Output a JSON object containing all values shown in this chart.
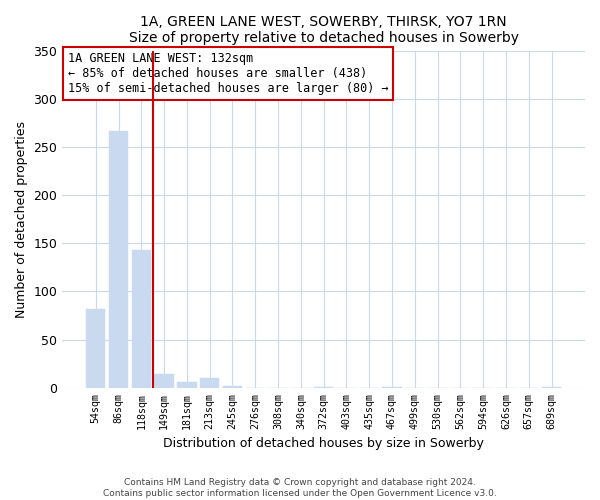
{
  "title": "1A, GREEN LANE WEST, SOWERBY, THIRSK, YO7 1RN",
  "subtitle": "Size of property relative to detached houses in Sowerby",
  "xlabel": "Distribution of detached houses by size in Sowerby",
  "ylabel": "Number of detached properties",
  "bar_labels": [
    "54sqm",
    "86sqm",
    "118sqm",
    "149sqm",
    "181sqm",
    "213sqm",
    "245sqm",
    "276sqm",
    "308sqm",
    "340sqm",
    "372sqm",
    "403sqm",
    "435sqm",
    "467sqm",
    "499sqm",
    "530sqm",
    "562sqm",
    "594sqm",
    "626sqm",
    "657sqm",
    "689sqm"
  ],
  "bar_values": [
    82,
    266,
    143,
    14,
    6,
    10,
    2,
    0,
    0,
    0,
    1,
    0,
    0,
    1,
    0,
    0,
    0,
    0,
    0,
    0,
    1
  ],
  "bar_color": "#c8d9f0",
  "bar_edge_color": "#afc8e8",
  "vline_x": 2.5,
  "vline_color": "#cc0000",
  "ylim": [
    0,
    350
  ],
  "yticks": [
    0,
    50,
    100,
    150,
    200,
    250,
    300,
    350
  ],
  "annotation_title": "1A GREEN LANE WEST: 132sqm",
  "annotation_line1": "← 85% of detached houses are smaller (438)",
  "annotation_line2": "15% of semi-detached houses are larger (80) →",
  "footer_line1": "Contains HM Land Registry data © Crown copyright and database right 2024.",
  "footer_line2": "Contains public sector information licensed under the Open Government Licence v3.0.",
  "background_color": "#ffffff",
  "grid_color": "#c8d9f0"
}
